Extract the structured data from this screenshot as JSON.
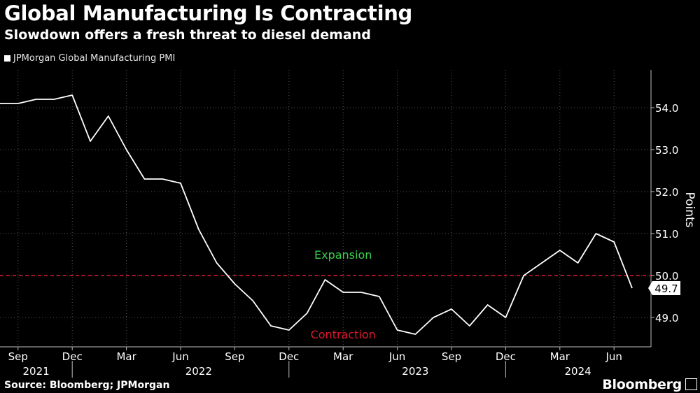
{
  "header": {
    "title": "Global Manufacturing Is Contracting",
    "subtitle": "Slowdown offers a fresh threat to diesel demand"
  },
  "footer": {
    "source": "Source: Bloomberg; JPMorgan",
    "brand": "Bloomberg"
  },
  "colors": {
    "background": "#000000",
    "line": "#ffffff",
    "grid": "#555555",
    "threshold": "#e0182d",
    "expansion": "#39d24a",
    "contraction": "#e0182d"
  },
  "chart_data": {
    "type": "line",
    "series": [
      {
        "name": "JPMorgan Global Manufacturing PMI",
        "x": [
          "2021-08",
          "2021-09",
          "2021-10",
          "2021-11",
          "2021-12",
          "2022-01",
          "2022-02",
          "2022-03",
          "2022-04",
          "2022-05",
          "2022-06",
          "2022-07",
          "2022-08",
          "2022-09",
          "2022-10",
          "2022-11",
          "2022-12",
          "2023-01",
          "2023-02",
          "2023-03",
          "2023-04",
          "2023-05",
          "2023-06",
          "2023-07",
          "2023-08",
          "2023-09",
          "2023-10",
          "2023-11",
          "2023-12",
          "2024-01",
          "2024-02",
          "2024-03",
          "2024-04",
          "2024-05",
          "2024-06",
          "2024-07"
        ],
        "values": [
          54.1,
          54.1,
          54.2,
          54.2,
          54.3,
          53.2,
          53.8,
          53.0,
          52.3,
          52.3,
          52.2,
          51.1,
          50.3,
          49.8,
          49.4,
          48.8,
          48.7,
          49.1,
          49.9,
          49.6,
          49.6,
          49.5,
          48.7,
          48.6,
          49.0,
          49.2,
          48.8,
          49.3,
          49.0,
          50.0,
          50.3,
          50.6,
          50.3,
          51.0,
          50.8,
          49.7
        ]
      }
    ],
    "last_value_label": "49.7",
    "ylabel": "Points",
    "ylim": [
      48.3,
      54.9
    ],
    "y_ticks": [
      49.0,
      50.0,
      51.0,
      52.0,
      53.0,
      54.0
    ],
    "y_tick_labels": [
      "49.0",
      "50.0",
      "51.0",
      "52.0",
      "53.0",
      "54.0"
    ],
    "x_ticks": [
      {
        "date": "2021-09",
        "label": "Sep"
      },
      {
        "date": "2021-12",
        "label": "Dec"
      },
      {
        "date": "2022-03",
        "label": "Mar"
      },
      {
        "date": "2022-06",
        "label": "Jun"
      },
      {
        "date": "2022-09",
        "label": "Sep"
      },
      {
        "date": "2022-12",
        "label": "Dec"
      },
      {
        "date": "2023-03",
        "label": "Mar"
      },
      {
        "date": "2023-06",
        "label": "Jun"
      },
      {
        "date": "2023-09",
        "label": "Sep"
      },
      {
        "date": "2023-12",
        "label": "Dec"
      },
      {
        "date": "2024-03",
        "label": "Mar"
      },
      {
        "date": "2024-06",
        "label": "Jun"
      }
    ],
    "year_labels": [
      {
        "date": "2021-10",
        "label": "2021"
      },
      {
        "date": "2022-07",
        "label": "2022"
      },
      {
        "date": "2023-07",
        "label": "2023"
      },
      {
        "date": "2024-04",
        "label": "2024"
      }
    ],
    "year_separators": [
      "2021-12",
      "2022-12",
      "2023-12"
    ],
    "threshold": {
      "value": 50.0,
      "style": "dashed"
    },
    "annotations": [
      {
        "text": "Expansion",
        "x": "2023-03",
        "y": 50.4,
        "color": "expansion"
      },
      {
        "text": "Contraction",
        "x": "2023-03",
        "y": 48.5,
        "color": "contraction"
      }
    ],
    "grid": true,
    "legend_position": "top-left"
  }
}
